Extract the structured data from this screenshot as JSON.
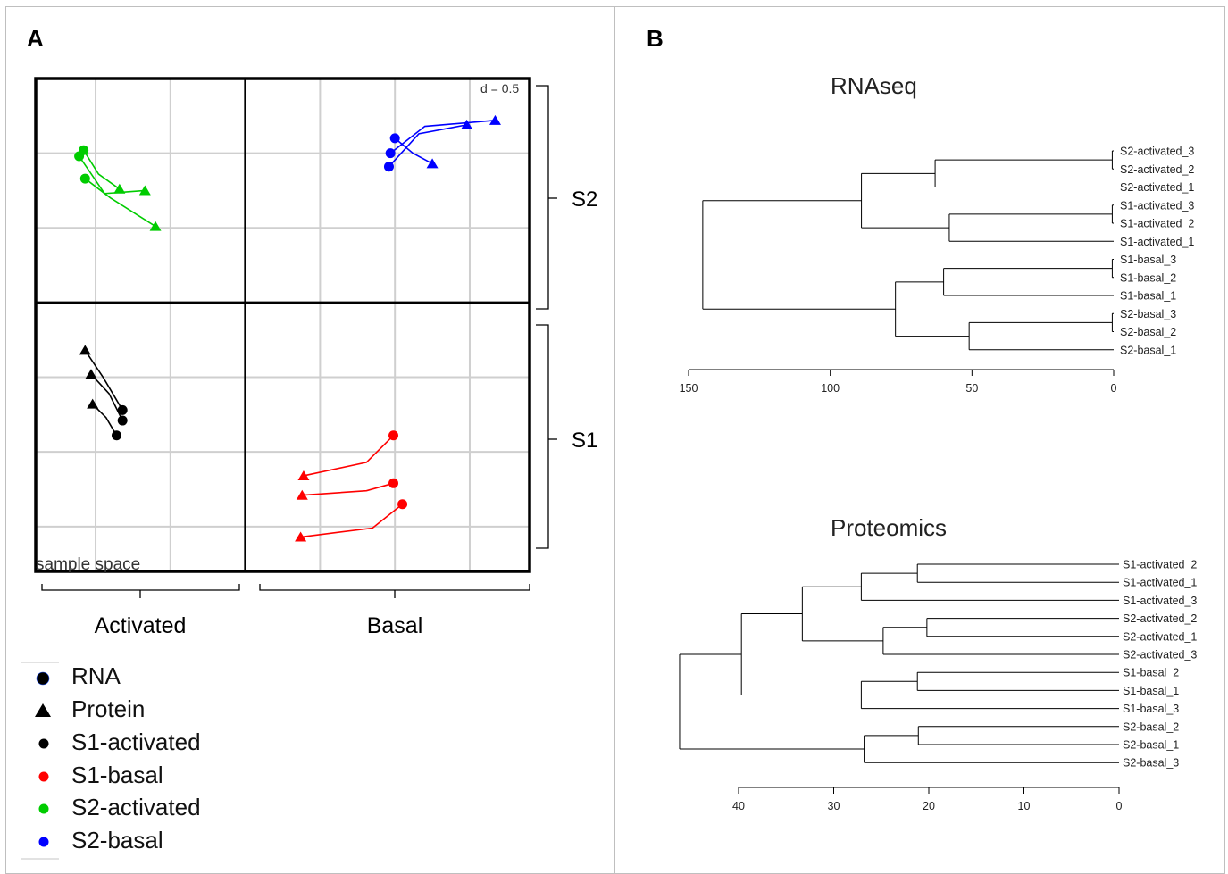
{
  "panels": {
    "a_label": "A",
    "b_label": "B"
  },
  "colors": {
    "s1_activated": "#000000",
    "s1_basal": "#ff0000",
    "s2_activated": "#00cc00",
    "s2_basal": "#0000ff",
    "grid": "#cfcfcf",
    "dendro": "#000000"
  },
  "chart_data": [
    {
      "type": "scatter",
      "panel": "A",
      "corner_label": "d = 0.5",
      "sample_space_label": "sample space",
      "quadrant_labels": {
        "bottom_left": "Activated",
        "bottom_right": "Basal",
        "right_top": "S2",
        "right_bottom": "S1"
      },
      "grid_step": 0.5,
      "xlim": [
        -1.4,
        1.9
      ],
      "ylim": [
        -1.8,
        1.5
      ],
      "legend": {
        "placement": "bottom-left",
        "entries": [
          {
            "label": "RNA",
            "marker": "circle",
            "color": "#000000"
          },
          {
            "label": "Protein",
            "marker": "triangle",
            "color": "#000000"
          },
          {
            "label": "S1-activated",
            "marker": "dot",
            "color": "#000000"
          },
          {
            "label": "S1-basal",
            "marker": "dot",
            "color": "#ff0000"
          },
          {
            "label": "S2-activated",
            "marker": "dot",
            "color": "#00cc00"
          },
          {
            "label": "S2-basal",
            "marker": "dot",
            "color": "#0000ff"
          }
        ]
      },
      "series": [
        {
          "name": "S2-activated",
          "color": "#00cc00",
          "pairs": [
            {
              "rna": [
                -1.08,
                1.02
              ],
              "protein": [
                -0.84,
                0.76
              ],
              "bend": [
                -0.98,
                0.86
              ]
            },
            {
              "rna": [
                -1.11,
                0.98
              ],
              "protein": [
                -0.67,
                0.75
              ],
              "bend": [
                -0.94,
                0.73
              ]
            },
            {
              "rna": [
                -1.07,
                0.83
              ],
              "protein": [
                -0.6,
                0.51
              ],
              "bend": [
                -0.9,
                0.7
              ]
            }
          ]
        },
        {
          "name": "S2-basal",
          "color": "#0000ff",
          "pairs": [
            {
              "rna": [
                1.0,
                1.1
              ],
              "protein": [
                1.25,
                0.93
              ],
              "bend": [
                1.12,
                1.0
              ]
            },
            {
              "rna": [
                0.96,
                0.91
              ],
              "protein": [
                1.48,
                1.19
              ],
              "bend": [
                1.16,
                1.13
              ]
            },
            {
              "rna": [
                0.97,
                1.0
              ],
              "protein": [
                1.67,
                1.22
              ],
              "bend": [
                1.2,
                1.18
              ]
            }
          ]
        },
        {
          "name": "S1-activated",
          "color": "#000000",
          "pairs": [
            {
              "rna": [
                -0.82,
                -0.72
              ],
              "protein": [
                -1.07,
                -0.32
              ],
              "bend": [
                -0.95,
                -0.5
              ]
            },
            {
              "rna": [
                -0.82,
                -0.79
              ],
              "protein": [
                -1.03,
                -0.48
              ],
              "bend": [
                -0.91,
                -0.61
              ]
            },
            {
              "rna": [
                -0.86,
                -0.89
              ],
              "protein": [
                -1.02,
                -0.68
              ],
              "bend": [
                -0.93,
                -0.77
              ]
            }
          ]
        },
        {
          "name": "S1-basal",
          "color": "#ff0000",
          "pairs": [
            {
              "rna": [
                0.99,
                -0.89
              ],
              "protein": [
                0.39,
                -1.16
              ],
              "bend": [
                0.81,
                -1.07
              ]
            },
            {
              "rna": [
                0.99,
                -1.21
              ],
              "protein": [
                0.38,
                -1.29
              ],
              "bend": [
                0.81,
                -1.26
              ]
            },
            {
              "rna": [
                1.05,
                -1.35
              ],
              "protein": [
                0.37,
                -1.57
              ],
              "bend": [
                0.85,
                -1.51
              ]
            }
          ]
        }
      ]
    },
    {
      "type": "dendrogram",
      "panel": "B",
      "title": "RNAseq",
      "axis_ticks": [
        150,
        100,
        50,
        0
      ],
      "axis_max": 150,
      "leaves": [
        "S2-activated_3",
        "S2-activated_2",
        "S2-activated_1",
        "S1-activated_3",
        "S1-activated_2",
        "S1-activated_1",
        "S1-basal_3",
        "S1-basal_2",
        "S1-basal_1",
        "S2-basal_3",
        "S2-basal_2",
        "S2-basal_1"
      ],
      "merges": [
        {
          "left": 0,
          "right": 1,
          "height": 0.5
        },
        {
          "left": -1,
          "right": 2,
          "height": 63
        },
        {
          "left": 3,
          "right": 4,
          "height": 0.5
        },
        {
          "left": -3,
          "right": 5,
          "height": 58
        },
        {
          "left": -2,
          "right": -4,
          "height": 89
        },
        {
          "left": 6,
          "right": 7,
          "height": 0.5
        },
        {
          "left": -6,
          "right": 8,
          "height": 60
        },
        {
          "left": 9,
          "right": 10,
          "height": 0.5
        },
        {
          "left": -8,
          "right": 11,
          "height": 51
        },
        {
          "left": -7,
          "right": -9,
          "height": 77
        },
        {
          "left": -5,
          "right": -10,
          "height": 145
        }
      ]
    },
    {
      "type": "dendrogram",
      "panel": "B",
      "title": "Proteomics",
      "axis_ticks": [
        40,
        30,
        20,
        10,
        0
      ],
      "axis_max": 40,
      "leaves": [
        "S1-activated_2",
        "S1-activated_1",
        "S1-activated_3",
        "S2-activated_2",
        "S2-activated_1",
        "S2-activated_3",
        "S1-basal_2",
        "S1-basal_1",
        "S1-basal_3",
        "S2-basal_2",
        "S2-basal_1",
        "S2-basal_3"
      ],
      "merges": [
        {
          "left": 0,
          "right": 1,
          "height": 21.2
        },
        {
          "left": -1,
          "right": 2,
          "height": 27.1
        },
        {
          "left": 3,
          "right": 4,
          "height": 20.2
        },
        {
          "left": -3,
          "right": 5,
          "height": 24.8
        },
        {
          "left": -2,
          "right": -4,
          "height": 33.3
        },
        {
          "left": 6,
          "right": 7,
          "height": 21.2
        },
        {
          "left": -6,
          "right": 8,
          "height": 27.1
        },
        {
          "left": -5,
          "right": -7,
          "height": 39.7
        },
        {
          "left": 9,
          "right": 10,
          "height": 21.1
        },
        {
          "left": -9,
          "right": 11,
          "height": 26.8
        },
        {
          "left": -8,
          "right": -10,
          "height": 46.2
        }
      ]
    }
  ]
}
